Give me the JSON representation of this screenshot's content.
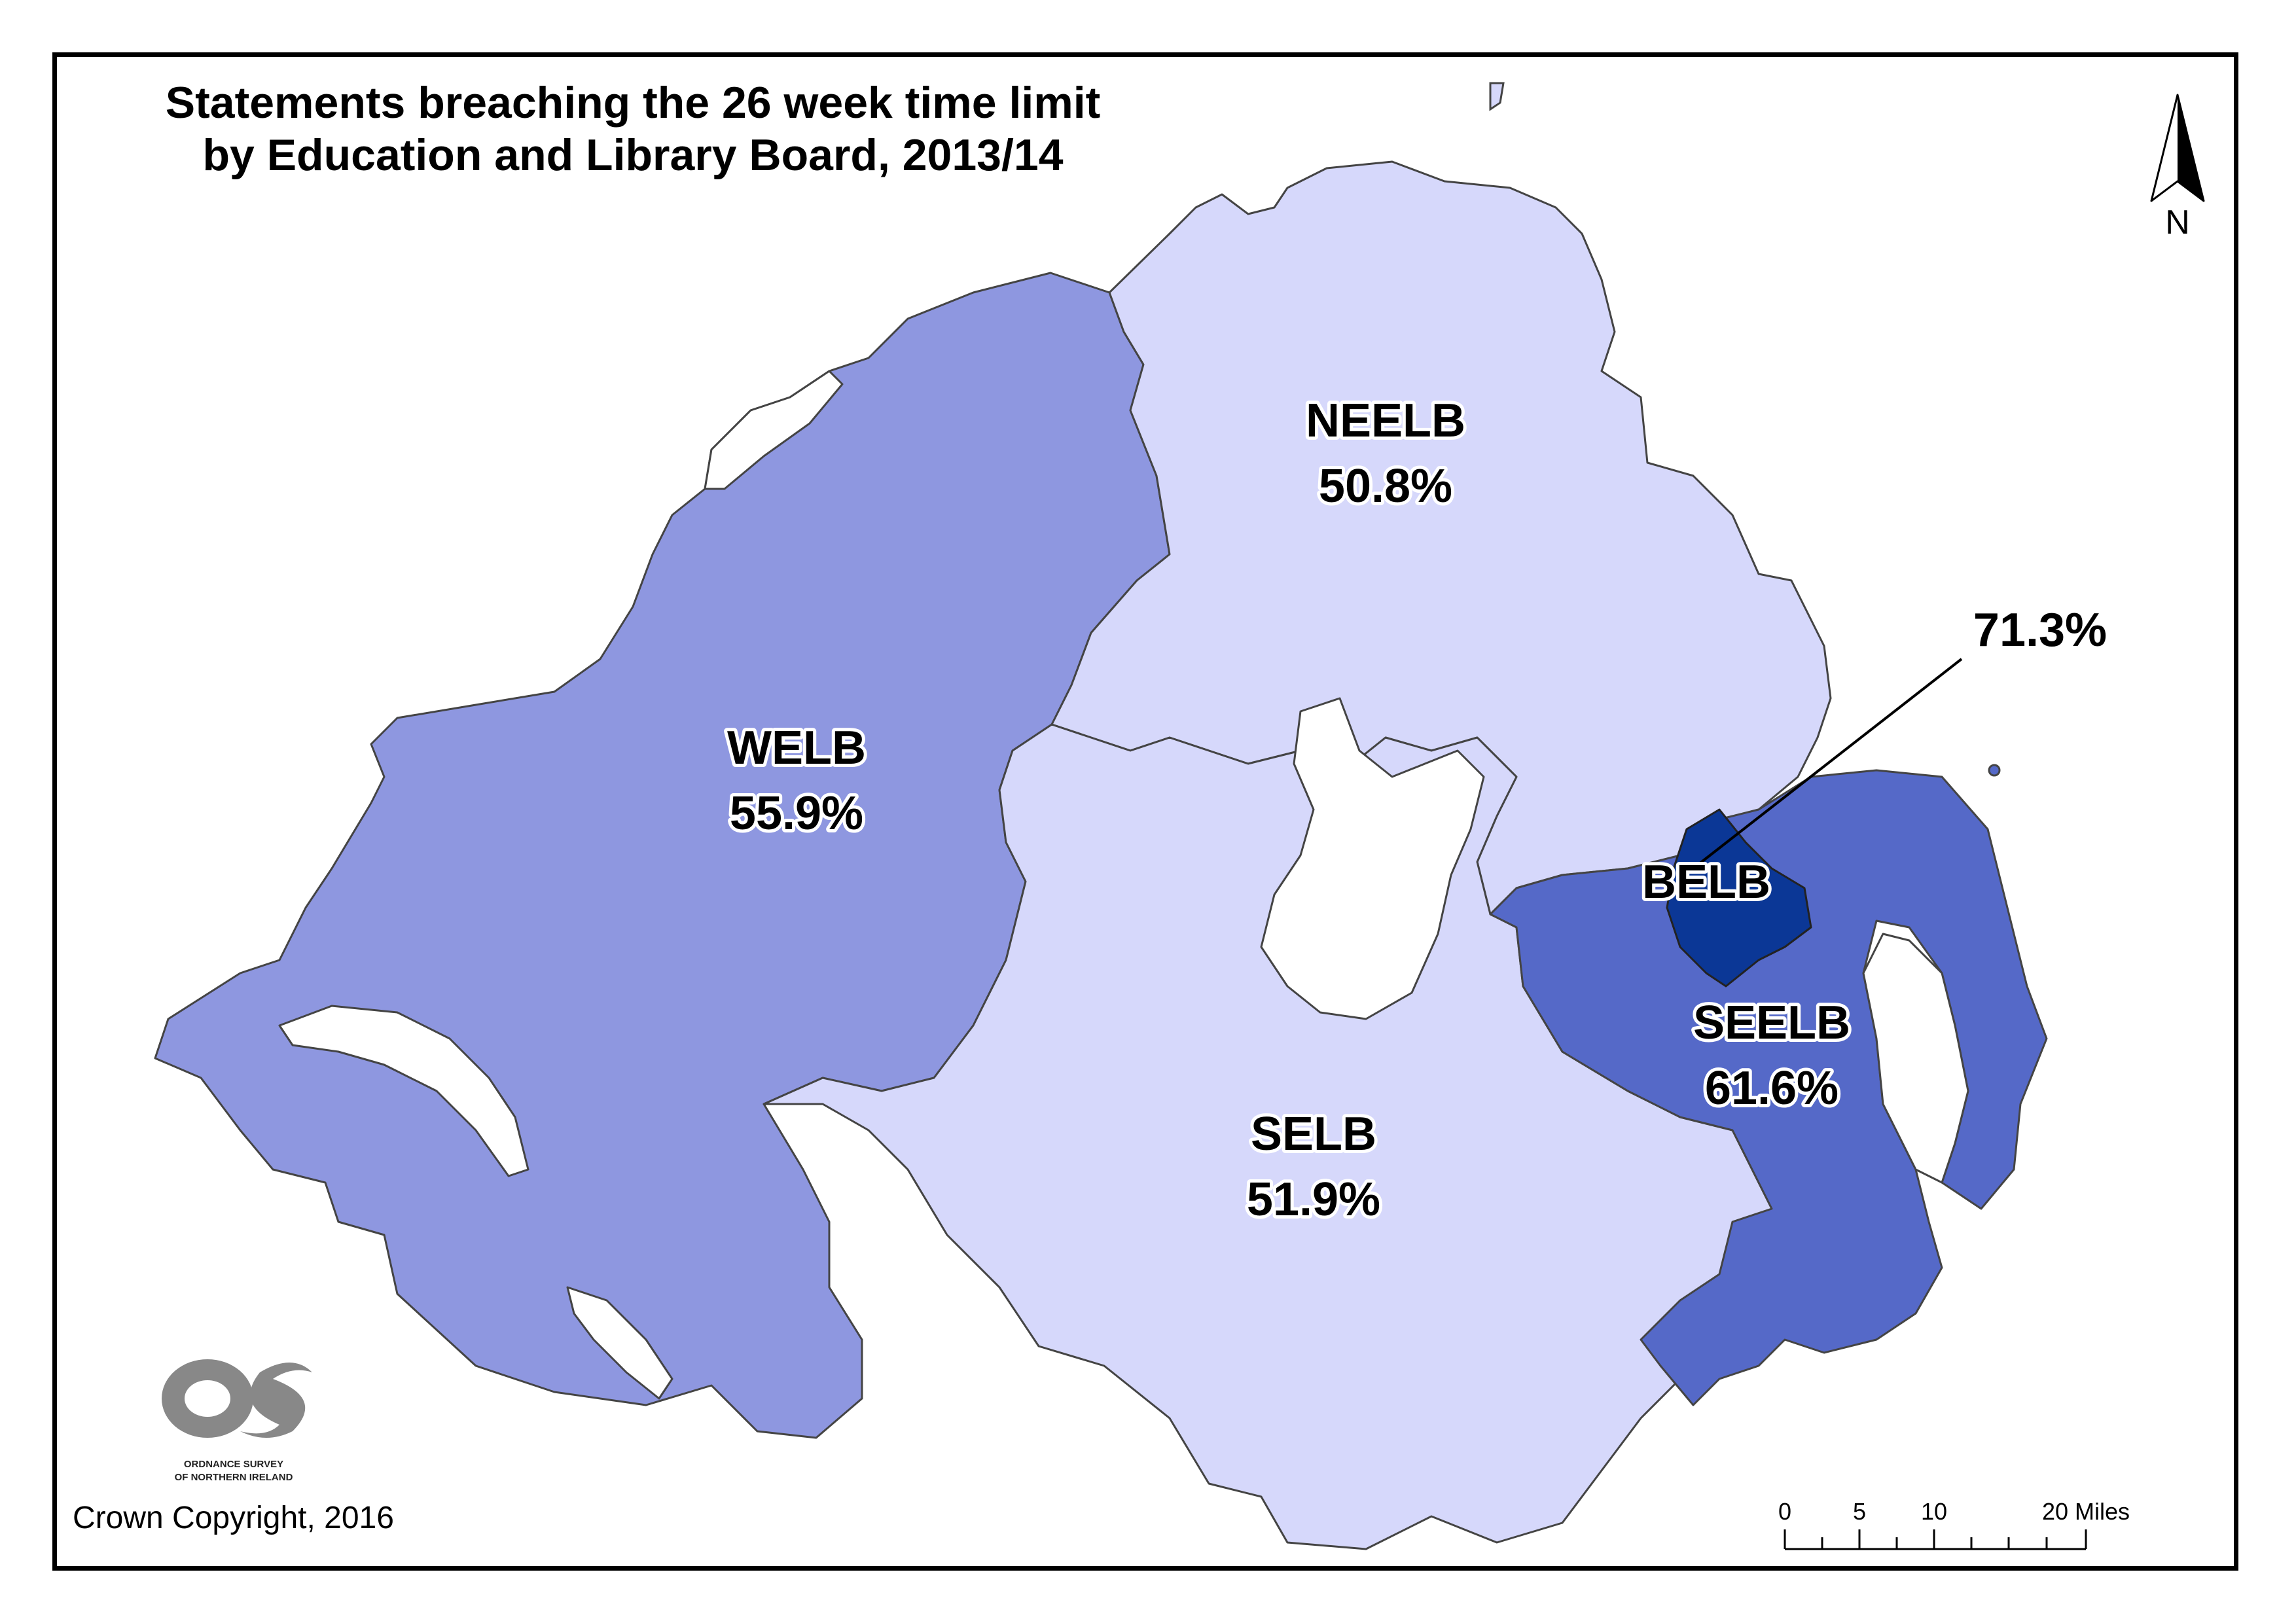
{
  "title_line1": "Statements breaching the 26 week time limit",
  "title_line2": "by Education and Library Board, 2013/14",
  "regions": {
    "welb": {
      "name": "WELB",
      "value": "55.9%",
      "color": "#8e97e0"
    },
    "neelb": {
      "name": "NEELB",
      "value": "50.8%",
      "color": "#d6d8fb"
    },
    "selb": {
      "name": "SELB",
      "value": "51.9%",
      "color": "#d6d8fb"
    },
    "seelb": {
      "name": "SEELB",
      "value": "61.6%",
      "color": "#5569c8"
    },
    "belb": {
      "name": "BELB",
      "value": "71.3%",
      "color": "#0b3796"
    }
  },
  "north_arrow": {
    "label": "N"
  },
  "scale_bar": {
    "labels": [
      "0",
      "5",
      "10",
      "20 Miles"
    ]
  },
  "logo": {
    "letters": "OS",
    "line1": "ORDNANCE SURVEY",
    "line2": "OF NORTHERN IRELAND"
  },
  "copyright": "Crown Copyright, 2016"
}
